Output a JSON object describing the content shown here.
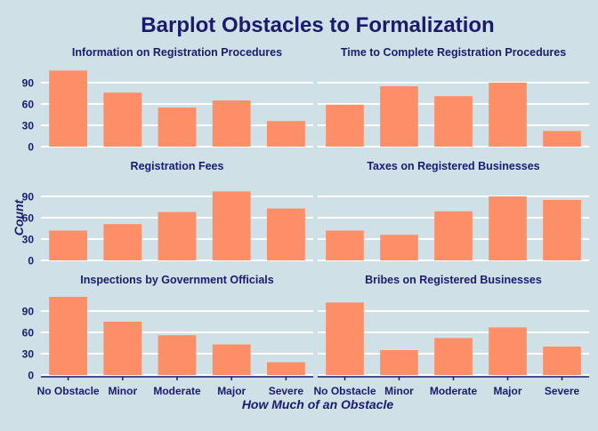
{
  "colors": {
    "background": "#cfe0e7",
    "bar": "#fd8f68",
    "text": "#1b1a6e",
    "grid": "#ffffff"
  },
  "chart_data": {
    "type": "bar",
    "title": "Barplot Obstacles to Formalization",
    "xlabel": "How Much of an Obstacle",
    "ylabel": "Count",
    "categories": [
      "No Obstacle",
      "Minor",
      "Moderate",
      "Major",
      "Severe"
    ],
    "ylim": [
      0,
      115
    ],
    "yticks": [
      0,
      30,
      60,
      90
    ],
    "grid": true,
    "layout": "3 rows x 2 columns facets",
    "panels": [
      {
        "name": "Information on Registration Procedures",
        "values": [
          107,
          76,
          55,
          65,
          36
        ]
      },
      {
        "name": "Time to Complete Registration Procedures",
        "values": [
          59,
          85,
          71,
          90,
          22
        ]
      },
      {
        "name": "Registration Fees",
        "values": [
          42,
          51,
          68,
          97,
          73
        ]
      },
      {
        "name": "Taxes on Registered Businesses",
        "values": [
          42,
          36,
          69,
          90,
          85
        ]
      },
      {
        "name": "Inspections by Government Officials",
        "values": [
          110,
          75,
          56,
          43,
          18
        ]
      },
      {
        "name": "Bribes on Registered Businesses",
        "values": [
          102,
          35,
          52,
          67,
          40
        ]
      }
    ]
  }
}
